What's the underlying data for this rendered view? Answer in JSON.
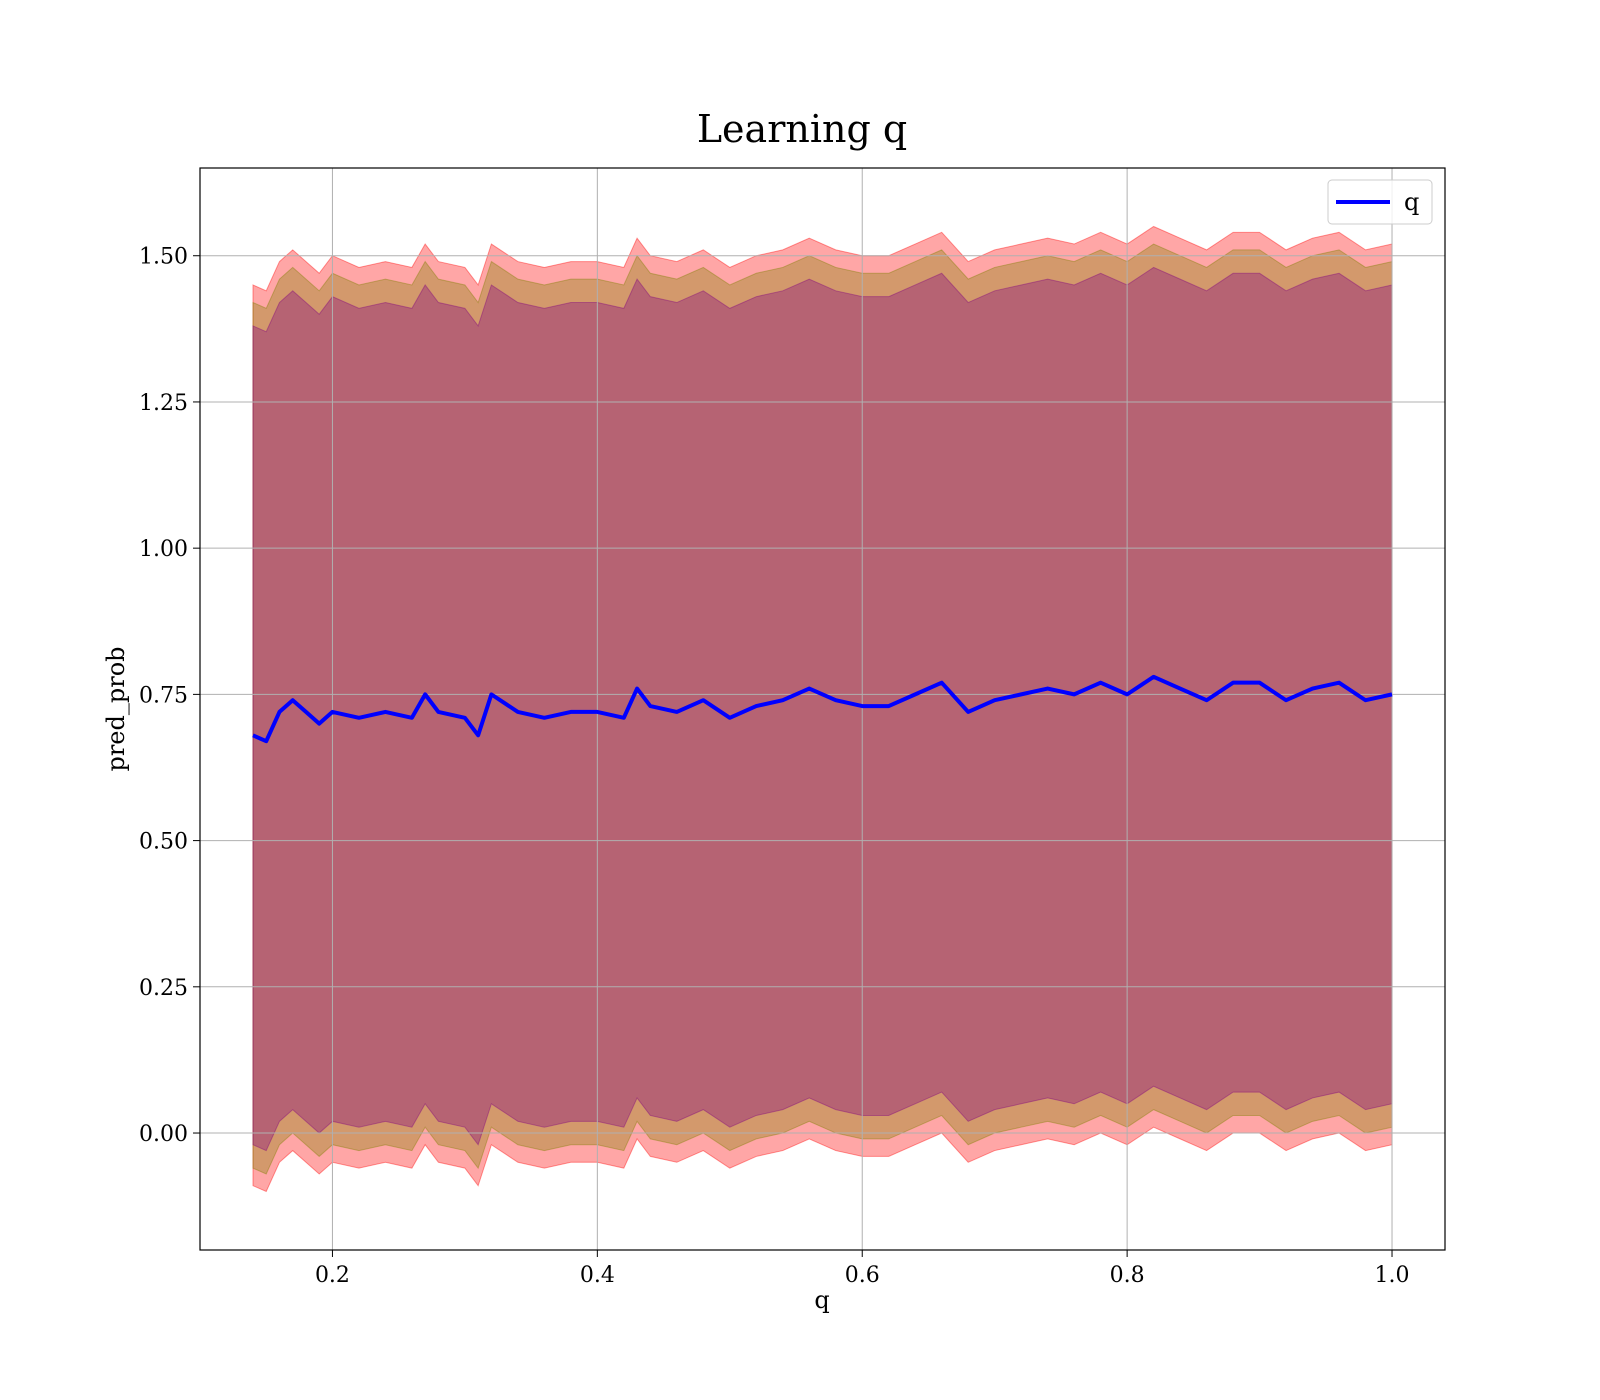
{
  "chart_data": {
    "type": "line",
    "title": "Learning q",
    "xlabel": "q",
    "ylabel": "pred_prob",
    "xlim": [
      0.1,
      1.04
    ],
    "ylim": [
      -0.2,
      1.65
    ],
    "xticks": [
      0.2,
      0.4,
      0.6,
      0.8,
      1.0
    ],
    "xtick_labels": [
      "0.2",
      "0.4",
      "0.6",
      "0.8",
      "1.0"
    ],
    "yticks": [
      0.0,
      0.25,
      0.5,
      0.75,
      1.0,
      1.25,
      1.5
    ],
    "ytick_labels": [
      "0.00",
      "0.25",
      "0.50",
      "0.75",
      "1.00",
      "1.25",
      "1.50"
    ],
    "grid": true,
    "legend": {
      "placement": "top-right",
      "entries": [
        {
          "label": "q",
          "color": "#0000ff"
        }
      ]
    },
    "series": [
      {
        "name": "q",
        "color": "#0000ff",
        "x": [
          0.14,
          0.15,
          0.16,
          0.17,
          0.18,
          0.19,
          0.2,
          0.22,
          0.24,
          0.26,
          0.27,
          0.28,
          0.3,
          0.31,
          0.32,
          0.34,
          0.36,
          0.38,
          0.4,
          0.42,
          0.43,
          0.44,
          0.46,
          0.48,
          0.5,
          0.52,
          0.54,
          0.56,
          0.58,
          0.6,
          0.62,
          0.64,
          0.66,
          0.68,
          0.7,
          0.72,
          0.74,
          0.76,
          0.78,
          0.8,
          0.82,
          0.84,
          0.86,
          0.88,
          0.9,
          0.92,
          0.94,
          0.96,
          0.98,
          1.0
        ],
        "y": [
          0.68,
          0.67,
          0.72,
          0.74,
          0.72,
          0.7,
          0.72,
          0.71,
          0.72,
          0.71,
          0.75,
          0.72,
          0.71,
          0.68,
          0.75,
          0.72,
          0.71,
          0.72,
          0.72,
          0.71,
          0.76,
          0.73,
          0.72,
          0.74,
          0.71,
          0.73,
          0.74,
          0.76,
          0.74,
          0.73,
          0.73,
          0.75,
          0.77,
          0.72,
          0.74,
          0.75,
          0.76,
          0.75,
          0.77,
          0.75,
          0.78,
          0.76,
          0.74,
          0.77,
          0.77,
          0.74,
          0.76,
          0.77,
          0.74,
          0.75
        ]
      }
    ],
    "bands": [
      {
        "color": "#ff0000",
        "opacity": 0.35,
        "x": [
          0.14,
          0.15,
          0.16,
          0.17,
          0.18,
          0.19,
          0.2,
          0.22,
          0.24,
          0.26,
          0.27,
          0.28,
          0.3,
          0.31,
          0.32,
          0.34,
          0.36,
          0.38,
          0.4,
          0.42,
          0.43,
          0.44,
          0.46,
          0.48,
          0.5,
          0.52,
          0.54,
          0.56,
          0.58,
          0.6,
          0.62,
          0.64,
          0.66,
          0.68,
          0.7,
          0.72,
          0.74,
          0.76,
          0.78,
          0.8,
          0.82,
          0.84,
          0.86,
          0.88,
          0.9,
          0.92,
          0.94,
          0.96,
          0.98,
          1.0
        ],
        "upper": [
          1.45,
          1.44,
          1.49,
          1.51,
          1.49,
          1.47,
          1.5,
          1.48,
          1.49,
          1.48,
          1.52,
          1.49,
          1.48,
          1.45,
          1.52,
          1.49,
          1.48,
          1.49,
          1.49,
          1.48,
          1.53,
          1.5,
          1.49,
          1.51,
          1.48,
          1.5,
          1.51,
          1.53,
          1.51,
          1.5,
          1.5,
          1.52,
          1.54,
          1.49,
          1.51,
          1.52,
          1.53,
          1.52,
          1.54,
          1.52,
          1.55,
          1.53,
          1.51,
          1.54,
          1.54,
          1.51,
          1.53,
          1.54,
          1.51,
          1.52
        ],
        "lower": [
          -0.09,
          -0.1,
          -0.05,
          -0.03,
          -0.05,
          -0.07,
          -0.05,
          -0.06,
          -0.05,
          -0.06,
          -0.02,
          -0.05,
          -0.06,
          -0.09,
          -0.02,
          -0.05,
          -0.06,
          -0.05,
          -0.05,
          -0.06,
          -0.01,
          -0.04,
          -0.05,
          -0.03,
          -0.06,
          -0.04,
          -0.03,
          -0.01,
          -0.03,
          -0.04,
          -0.04,
          -0.02,
          0.0,
          -0.05,
          -0.03,
          -0.02,
          -0.01,
          -0.02,
          0.0,
          -0.02,
          0.01,
          -0.01,
          -0.03,
          0.0,
          0.0,
          -0.03,
          -0.01,
          0.0,
          -0.03,
          -0.02
        ]
      },
      {
        "color": "#808000",
        "opacity": 0.35,
        "x": [
          0.14,
          0.15,
          0.16,
          0.17,
          0.18,
          0.19,
          0.2,
          0.22,
          0.24,
          0.26,
          0.27,
          0.28,
          0.3,
          0.31,
          0.32,
          0.34,
          0.36,
          0.38,
          0.4,
          0.42,
          0.43,
          0.44,
          0.46,
          0.48,
          0.5,
          0.52,
          0.54,
          0.56,
          0.58,
          0.6,
          0.62,
          0.64,
          0.66,
          0.68,
          0.7,
          0.72,
          0.74,
          0.76,
          0.78,
          0.8,
          0.82,
          0.84,
          0.86,
          0.88,
          0.9,
          0.92,
          0.94,
          0.96,
          0.98,
          1.0
        ],
        "upper": [
          1.42,
          1.41,
          1.46,
          1.48,
          1.46,
          1.44,
          1.47,
          1.45,
          1.46,
          1.45,
          1.49,
          1.46,
          1.45,
          1.42,
          1.49,
          1.46,
          1.45,
          1.46,
          1.46,
          1.45,
          1.5,
          1.47,
          1.46,
          1.48,
          1.45,
          1.47,
          1.48,
          1.5,
          1.48,
          1.47,
          1.47,
          1.49,
          1.51,
          1.46,
          1.48,
          1.49,
          1.5,
          1.49,
          1.51,
          1.49,
          1.52,
          1.5,
          1.48,
          1.51,
          1.51,
          1.48,
          1.5,
          1.51,
          1.48,
          1.49
        ],
        "lower": [
          -0.06,
          -0.07,
          -0.02,
          0.0,
          -0.02,
          -0.04,
          -0.02,
          -0.03,
          -0.02,
          -0.03,
          0.01,
          -0.02,
          -0.03,
          -0.06,
          0.01,
          -0.02,
          -0.03,
          -0.02,
          -0.02,
          -0.03,
          0.02,
          -0.01,
          -0.02,
          0.0,
          -0.03,
          -0.01,
          0.0,
          0.02,
          0.0,
          -0.01,
          -0.01,
          0.01,
          0.03,
          -0.02,
          0.0,
          0.01,
          0.02,
          0.01,
          0.03,
          0.01,
          0.04,
          0.02,
          0.0,
          0.03,
          0.03,
          0.0,
          0.02,
          0.03,
          0.0,
          0.01
        ]
      },
      {
        "color": "#800080",
        "opacity": 0.35,
        "x": [
          0.14,
          0.15,
          0.16,
          0.17,
          0.18,
          0.19,
          0.2,
          0.22,
          0.24,
          0.26,
          0.27,
          0.28,
          0.3,
          0.31,
          0.32,
          0.34,
          0.36,
          0.38,
          0.4,
          0.42,
          0.43,
          0.44,
          0.46,
          0.48,
          0.5,
          0.52,
          0.54,
          0.56,
          0.58,
          0.6,
          0.62,
          0.64,
          0.66,
          0.68,
          0.7,
          0.72,
          0.74,
          0.76,
          0.78,
          0.8,
          0.82,
          0.84,
          0.86,
          0.88,
          0.9,
          0.92,
          0.94,
          0.96,
          0.98,
          1.0
        ],
        "upper": [
          1.38,
          1.37,
          1.42,
          1.44,
          1.42,
          1.4,
          1.43,
          1.41,
          1.42,
          1.41,
          1.45,
          1.42,
          1.41,
          1.38,
          1.45,
          1.42,
          1.41,
          1.42,
          1.42,
          1.41,
          1.46,
          1.43,
          1.42,
          1.44,
          1.41,
          1.43,
          1.44,
          1.46,
          1.44,
          1.43,
          1.43,
          1.45,
          1.47,
          1.42,
          1.44,
          1.45,
          1.46,
          1.45,
          1.47,
          1.45,
          1.48,
          1.46,
          1.44,
          1.47,
          1.47,
          1.44,
          1.46,
          1.47,
          1.44,
          1.45
        ],
        "lower": [
          -0.02,
          -0.03,
          0.02,
          0.04,
          0.02,
          0.0,
          0.02,
          0.01,
          0.02,
          0.01,
          0.05,
          0.02,
          0.01,
          -0.02,
          0.05,
          0.02,
          0.01,
          0.02,
          0.02,
          0.01,
          0.06,
          0.03,
          0.02,
          0.04,
          0.01,
          0.03,
          0.04,
          0.06,
          0.04,
          0.03,
          0.03,
          0.05,
          0.07,
          0.02,
          0.04,
          0.05,
          0.06,
          0.05,
          0.07,
          0.05,
          0.08,
          0.06,
          0.04,
          0.07,
          0.07,
          0.04,
          0.06,
          0.07,
          0.04,
          0.05
        ]
      }
    ]
  }
}
